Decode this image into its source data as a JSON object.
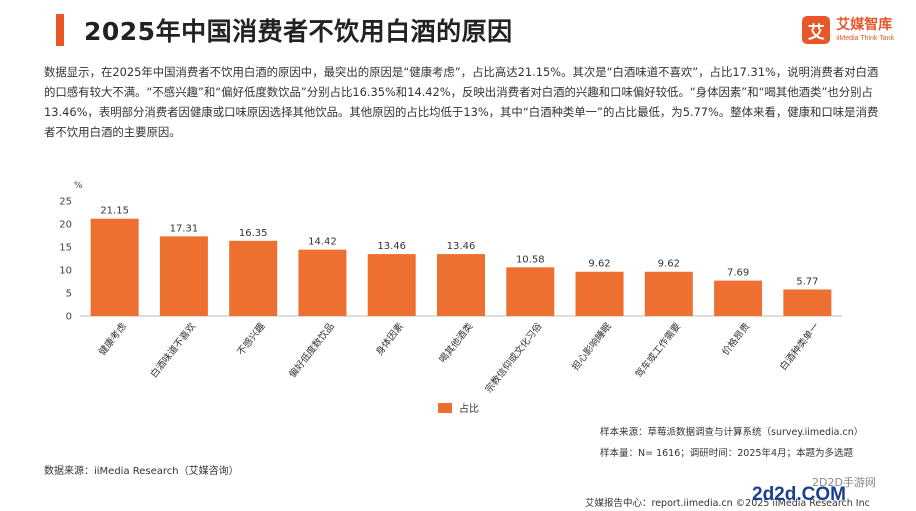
{
  "header": {
    "title": "2025年中国消费者不饮用白酒的原因",
    "brand_name": "艾媒智库",
    "brand_sub": "iiMedia Think Tank",
    "brand_logo_char": "艾"
  },
  "description": "数据显示，在2025年中国消费者不饮用白酒的原因中，最突出的原因是“健康考虑”，占比高达21.15%。其次是“白酒味道不喜欢”，占比17.31%，说明消费者对白酒的口感有较大不满。“不感兴趣”和“偏好低度数饮品”分别占比16.35%和14.42%，反映出消费者对白酒的兴趣和口味偏好较低。“身体因素”和“喝其他酒类”也分别占13.46%，表明部分消费者因健康或口味原因选择其他饮品。其他原因的占比均低于13%，其中“白酒种类单一”的占比最低，为5.77%。整体来看，健康和口味是消费者不饮用白酒的主要原因。",
  "chart_data": {
    "type": "bar",
    "categories": [
      "健康考虑",
      "白酒味道不喜欢",
      "不感兴趣",
      "偏好低度数饮品",
      "身体因素",
      "喝其他酒类",
      "宗教信仰或文化习俗",
      "担心影响睡眠",
      "驾车或工作需要",
      "价格昂贵",
      "白酒种类单一"
    ],
    "values": [
      21.15,
      17.31,
      16.35,
      14.42,
      13.46,
      13.46,
      10.58,
      9.62,
      9.62,
      7.69,
      5.77
    ],
    "value_labels": [
      "21.15",
      "17.31",
      "16.35",
      "14.42",
      "13.46",
      "13.46",
      "10.58",
      "9.62",
      "9.62",
      "7.69",
      "5.77"
    ],
    "series": [
      {
        "name": "占比",
        "values": [
          21.15,
          17.31,
          16.35,
          14.42,
          13.46,
          13.46,
          10.58,
          9.62,
          9.62,
          7.69,
          5.77
        ]
      }
    ],
    "ylabel": "%",
    "ylim": [
      0,
      25
    ],
    "yticks": [
      "0",
      "5",
      "10",
      "15",
      "20",
      "25"
    ],
    "grid": false,
    "legend": "bottom",
    "bar_color": "#ed7031"
  },
  "footer": {
    "data_source": "数据来源：iiMedia Research（艾媒咨询）",
    "sample_source": "样本来源：草莓派数据调查与计算系统（survey.iimedia.cn）",
    "sample_size": "样本量：N= 1616；调研时间：2025年4月；本题为多选题",
    "report_center": "艾媒报告中心：report.iimedia.cn ©2025 iiMedia Research Inc"
  },
  "watermark": {
    "line1": "2D2D手游网",
    "line2": "2d2d.COM"
  }
}
